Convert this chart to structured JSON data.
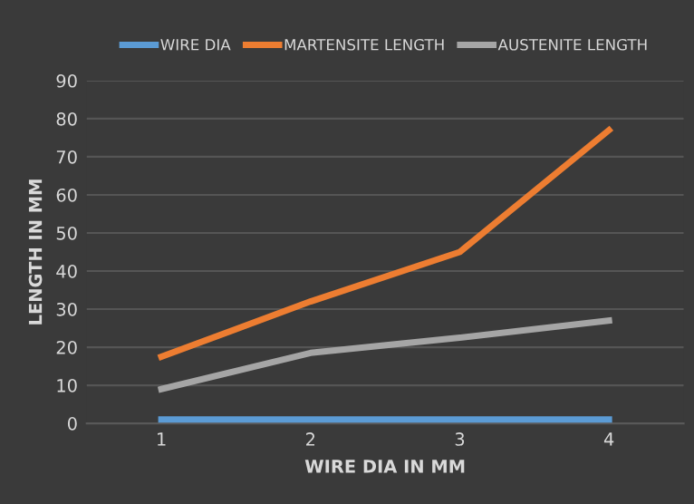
{
  "chart_data": {
    "type": "line",
    "xlabel": "WIRE DIA IN MM",
    "ylabel": "LENGTH IN MM",
    "categories": [
      "1",
      "2",
      "3",
      "4"
    ],
    "series": [
      {
        "name": "WIRE DIA",
        "color": "#5b9bd5",
        "values": [
          1,
          1,
          1,
          1
        ]
      },
      {
        "name": "MARTENSITE LENGTH",
        "color": "#ed7d31",
        "values": [
          17.5,
          32,
          45,
          77
        ]
      },
      {
        "name": "AUSTENITE LENGTH",
        "color": "#a5a5a5",
        "values": [
          9,
          18.5,
          22.5,
          27
        ]
      }
    ],
    "ylim": [
      0,
      90
    ],
    "yticks": [
      0,
      10,
      20,
      30,
      40,
      50,
      60,
      70,
      80,
      90
    ],
    "grid": "y",
    "legend": "top",
    "marker": "none",
    "line_style": "solid"
  }
}
